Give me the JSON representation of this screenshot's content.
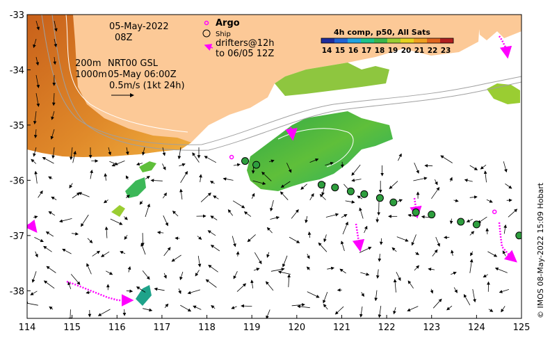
{
  "map": {
    "date_label": "05-May-2022",
    "time_label": "08Z",
    "contour_label_1": "200m",
    "contour_label_2": "1000m",
    "product_label": "NRT00 GSL",
    "product_time": "05-May 06:00Z",
    "scale_label": "0.5m/s (1kt 24h)",
    "legend": {
      "argo": "Argo",
      "ship": "Ship",
      "drifters_1": "drifters@12h",
      "drifters_2": "to 06/05 12Z"
    },
    "colorbar": {
      "title": "4h comp, p50, All Sats",
      "ticks": [
        "14",
        "15",
        "16",
        "17",
        "18",
        "19",
        "20",
        "21",
        "22",
        "23"
      ],
      "colors": [
        "#1d2c9c",
        "#1f63d6",
        "#1fa3e0",
        "#1cc38a",
        "#39b54a",
        "#9acd32",
        "#e6d31e",
        "#f0a020",
        "#e0641e",
        "#b01e1e"
      ]
    },
    "credit": "© IMOS 08-May-2022 15:09 Hobart",
    "axes": {
      "x_ticks": [
        "114",
        "115",
        "116",
        "117",
        "118",
        "119",
        "120",
        "121",
        "122",
        "123",
        "124",
        "125"
      ],
      "y_ticks": [
        "-33",
        "-34",
        "-35",
        "-36",
        "-37",
        "-38"
      ]
    },
    "colors": {
      "land": "#fcc997",
      "argo": "#ff00ff",
      "drifter": "#ff00ff",
      "ship_fill": "#2e9e3e"
    },
    "ship_track": [
      [
        118.85,
        -35.65
      ],
      [
        119.1,
        -35.72
      ],
      [
        120.55,
        -36.08
      ],
      [
        120.85,
        -36.13
      ],
      [
        121.2,
        -36.2
      ],
      [
        121.5,
        -36.25
      ],
      [
        121.85,
        -36.32
      ],
      [
        122.15,
        -36.4
      ],
      [
        122.65,
        -36.58
      ],
      [
        123.0,
        -36.62
      ],
      [
        123.65,
        -36.75
      ],
      [
        124.0,
        -36.8
      ],
      [
        124.95,
        -37.0
      ]
    ],
    "argo_floats": [
      [
        124.4,
        -36.57
      ],
      [
        118.55,
        -35.58
      ]
    ]
  }
}
